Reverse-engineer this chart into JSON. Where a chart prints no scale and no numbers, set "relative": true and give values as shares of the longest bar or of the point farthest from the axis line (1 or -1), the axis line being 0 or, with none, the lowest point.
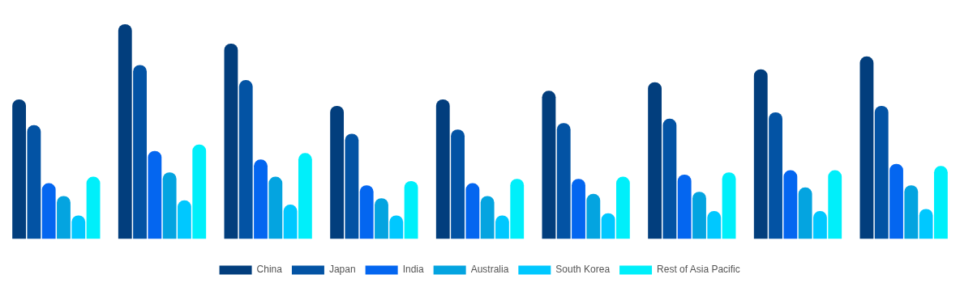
{
  "chart_data": {
    "type": "bar",
    "relative": true,
    "categories": [
      null,
      null,
      null,
      null,
      null,
      null,
      null,
      null,
      null
    ],
    "legend": "bottom",
    "grid": false,
    "series": [
      {
        "name": "China",
        "color": "#023e7d",
        "values": [
          0.65,
          1,
          0.91,
          0.62,
          0.65,
          0.69,
          0.73,
          0.79,
          0.85
        ]
      },
      {
        "name": "Japan",
        "color": "#0353a4",
        "values": [
          0.53,
          0.81,
          0.74,
          0.49,
          0.51,
          0.54,
          0.56,
          0.59,
          0.62
        ]
      },
      {
        "name": "India",
        "color": "#0466f0",
        "values": [
          0.26,
          0.41,
          0.37,
          0.25,
          0.26,
          0.28,
          0.3,
          0.32,
          0.35
        ]
      },
      {
        "name": "Australia",
        "color": "#04a4e0",
        "values": [
          0.2,
          0.31,
          0.29,
          0.19,
          0.2,
          0.21,
          0.22,
          0.24,
          0.25
        ]
      },
      {
        "name": "South Korea",
        "color": "#00c8ff",
        "values": [
          0.11,
          0.18,
          0.16,
          0.11,
          0.11,
          0.12,
          0.13,
          0.13,
          0.14
        ]
      },
      {
        "name": "Rest of Asia Pacific",
        "color": "#00effa",
        "values": [
          0.29,
          0.44,
          0.4,
          0.27,
          0.28,
          0.29,
          0.31,
          0.32,
          0.34
        ]
      }
    ]
  }
}
